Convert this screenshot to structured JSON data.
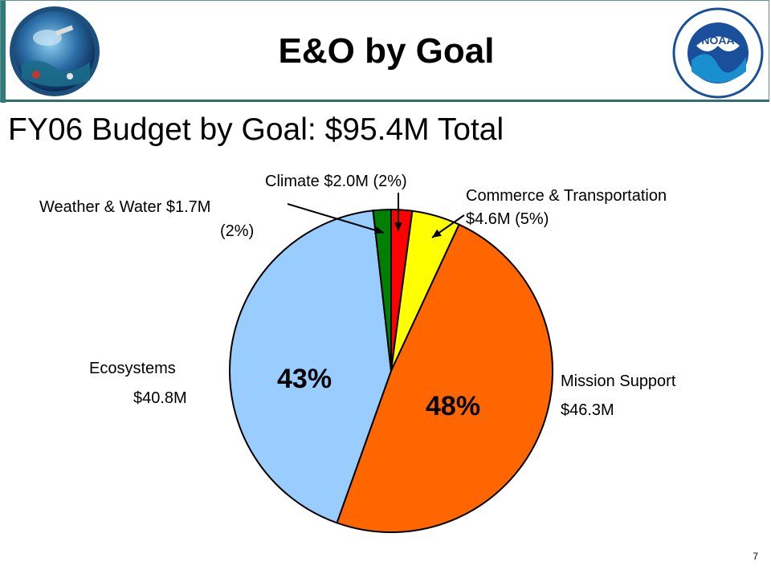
{
  "header": {
    "title": "E&O by Goal"
  },
  "slide": {
    "title": "FY06 Budget by Goal: $95.4M Total",
    "page_number": "7"
  },
  "logos": {
    "left": "satellite-ocean-emblem",
    "right": "noaa-logo"
  },
  "chart_data": {
    "type": "pie",
    "title": "FY06 Budget by Goal: $95.4M Total",
    "total": 95.4,
    "unit": "$M",
    "slices": [
      {
        "name": "Climate",
        "value": 2.0,
        "percent": 2,
        "color": "#ff0000",
        "label_l1": "Climate $2.0M (2%)",
        "label_l2": ""
      },
      {
        "name": "Commerce & Transportation",
        "value": 4.6,
        "percent": 5,
        "color": "#ffff00",
        "label_l1": "Commerce & Transportation",
        "label_l2": "$4.6M (5%)"
      },
      {
        "name": "Mission Support",
        "value": 46.3,
        "percent": 48,
        "color": "#ff6600",
        "label_l1": "Mission Support",
        "label_l2": "$46.3M",
        "inner_label": "48%"
      },
      {
        "name": "Ecosystems",
        "value": 40.8,
        "percent": 43,
        "color": "#99ccff",
        "label_l1": "Ecosystems",
        "label_l2": "$40.8M",
        "inner_label": "43%"
      },
      {
        "name": "Weather & Water",
        "value": 1.7,
        "percent": 2,
        "color": "#008000",
        "label_l1": "Weather & Water $1.7M",
        "label_l2": "(2%)"
      }
    ]
  }
}
